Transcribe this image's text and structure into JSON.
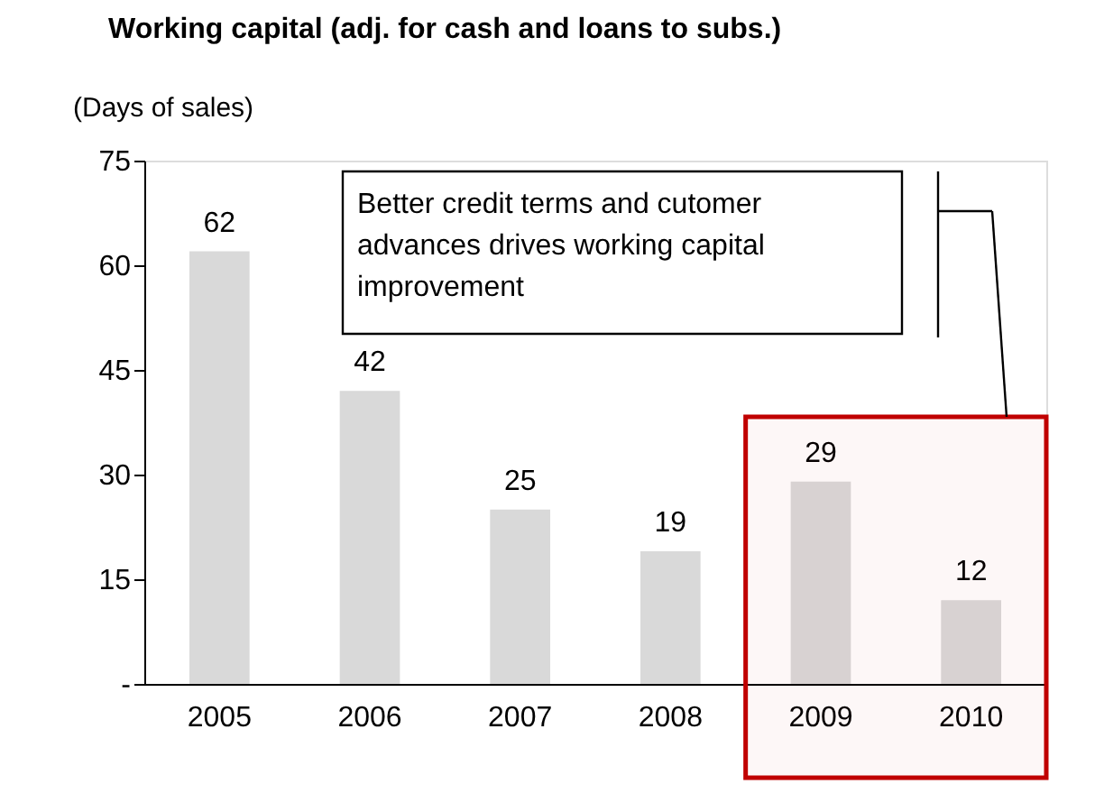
{
  "chart_data": {
    "type": "bar",
    "title": "Working capital (adj. for cash and loans to subs.)",
    "ylabel": "(Days of sales)",
    "categories": [
      "2005",
      "2006",
      "2007",
      "2008",
      "2009",
      "2010"
    ],
    "values": [
      62,
      42,
      25,
      19,
      29,
      12
    ],
    "color": "#d9d9d9",
    "data_labels": true,
    "ylim": [
      0,
      75
    ],
    "yticks": [
      {
        "value": 0,
        "label": "-"
      },
      15,
      30,
      45,
      60,
      75
    ],
    "grid": false,
    "annotations": [
      "Better credit terms and cutomer\nadvances drives working capital\nimprovement"
    ],
    "bands": [
      {
        "axis": "x",
        "from": "2009",
        "to": "2010",
        "color": "#c00000"
      }
    ]
  }
}
